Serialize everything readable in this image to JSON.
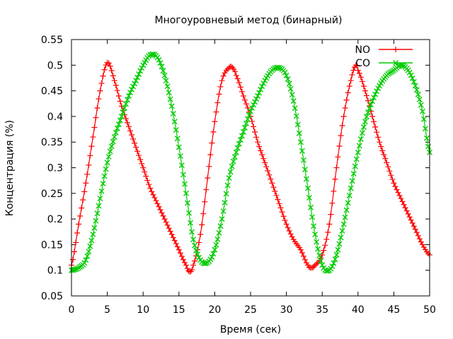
{
  "chart_data": {
    "type": "line",
    "title": "Многоуровневый метод (бинарный)",
    "xlabel": "Время (сек)",
    "ylabel": "Концентрация (%)",
    "xlim": [
      0,
      50
    ],
    "ylim": [
      0.05,
      0.55
    ],
    "xticks": [
      "0",
      "5",
      "10",
      "15",
      "20",
      "25",
      "30",
      "35",
      "40",
      "45",
      "50"
    ],
    "yticks": [
      "0.05",
      "0.1",
      "0.15",
      "0.2",
      "0.25",
      "0.3",
      "0.35",
      "0.4",
      "0.45",
      "0.5",
      "0.55"
    ],
    "grid": false,
    "legend_position": "top-right",
    "series": [
      {
        "name": "NO",
        "color": "#ff0000",
        "marker": "plus",
        "x": [
          0,
          1,
          2,
          3,
          4,
          5,
          6,
          7,
          8,
          9,
          10,
          11,
          12,
          13,
          14,
          15,
          16,
          16.5,
          17,
          18,
          19,
          20,
          21,
          22,
          22.5,
          23,
          24,
          25,
          26,
          27,
          28,
          29,
          30,
          31,
          32,
          33,
          33.5,
          34,
          35,
          36,
          37,
          38,
          39,
          39.7,
          40,
          41,
          42,
          43,
          44,
          45,
          46,
          47,
          48,
          49,
          50
        ],
        "y": [
          0.11,
          0.19,
          0.27,
          0.36,
          0.45,
          0.505,
          0.47,
          0.42,
          0.38,
          0.34,
          0.3,
          0.26,
          0.23,
          0.2,
          0.17,
          0.14,
          0.11,
          0.097,
          0.11,
          0.17,
          0.28,
          0.39,
          0.47,
          0.495,
          0.495,
          0.48,
          0.44,
          0.4,
          0.35,
          0.31,
          0.27,
          0.23,
          0.19,
          0.16,
          0.14,
          0.11,
          0.105,
          0.11,
          0.13,
          0.19,
          0.3,
          0.4,
          0.47,
          0.5,
          0.49,
          0.45,
          0.4,
          0.35,
          0.31,
          0.27,
          0.24,
          0.21,
          0.18,
          0.15,
          0.13
        ]
      },
      {
        "name": "CO",
        "color": "#00cc00",
        "marker": "cross",
        "x": [
          0,
          1,
          2,
          3,
          4,
          5,
          6,
          7,
          8,
          9,
          10,
          11,
          12,
          13,
          14,
          15,
          16,
          17,
          18,
          19,
          20,
          21,
          22,
          23,
          24,
          25,
          26,
          27,
          28,
          29,
          30,
          31,
          32,
          33,
          34,
          35,
          36,
          37,
          38,
          39,
          40,
          41,
          42,
          43,
          44,
          45,
          46,
          47,
          48,
          49,
          50
        ],
        "y": [
          0.1,
          0.105,
          0.12,
          0.17,
          0.24,
          0.31,
          0.36,
          0.4,
          0.44,
          0.47,
          0.5,
          0.52,
          0.515,
          0.48,
          0.42,
          0.34,
          0.25,
          0.16,
          0.12,
          0.115,
          0.14,
          0.2,
          0.28,
          0.33,
          0.37,
          0.41,
          0.44,
          0.47,
          0.49,
          0.495,
          0.48,
          0.43,
          0.35,
          0.26,
          0.17,
          0.11,
          0.1,
          0.13,
          0.19,
          0.26,
          0.33,
          0.39,
          0.43,
          0.46,
          0.48,
          0.49,
          0.5,
          0.49,
          0.46,
          0.41,
          0.33
        ]
      }
    ]
  }
}
